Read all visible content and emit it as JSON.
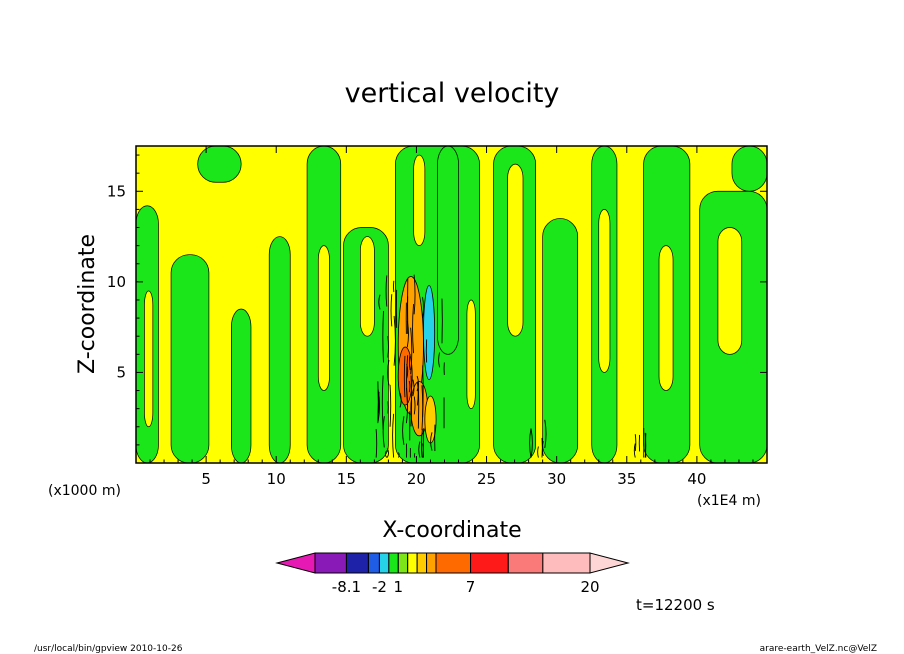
{
  "chart_data": {
    "type": "heatmap",
    "title": "vertical velocity",
    "xlabel": "X-coordinate",
    "ylabel": "Z-coordinate",
    "x_unit_left": "(x1000 m)",
    "x_unit_right": "(x1E4 m)",
    "xlim": [
      0,
      45
    ],
    "ylim": [
      0,
      17.5
    ],
    "x_ticks": [
      "5",
      "10",
      "15",
      "20",
      "25",
      "30",
      "35",
      "40"
    ],
    "x_tick_values": [
      5,
      10,
      15,
      20,
      25,
      30,
      35,
      40
    ],
    "y_ticks": [
      "5",
      "10",
      "15"
    ],
    "y_tick_values": [
      5,
      10,
      15
    ],
    "colorbar": {
      "labels": [
        "-8.1",
        "-2",
        "1",
        "7",
        "20"
      ],
      "colors": [
        "#e619b4",
        "#8a1ab8",
        "#1e22a8",
        "#1f5de6",
        "#25d2e8",
        "#1ae619",
        "#7de619",
        "#ffff00",
        "#ffcc00",
        "#ffa200",
        "#ff6a00",
        "#ff1a1a",
        "#fa7a7a",
        "#ffbcbc",
        "#ffd6d6"
      ]
    },
    "time_label": "t=12200 s",
    "footer_left": "/usr/local/bin/gpview   2010-10-26",
    "footer_right": "arare-earth_VelZ.nc@VelZ",
    "palette": {
      "negative_weak": "#1ae619",
      "positive_weak": "#ffff00",
      "updraft": "#ffa200",
      "downdraft": "#25d2e8",
      "contour_line": "#000000"
    }
  }
}
